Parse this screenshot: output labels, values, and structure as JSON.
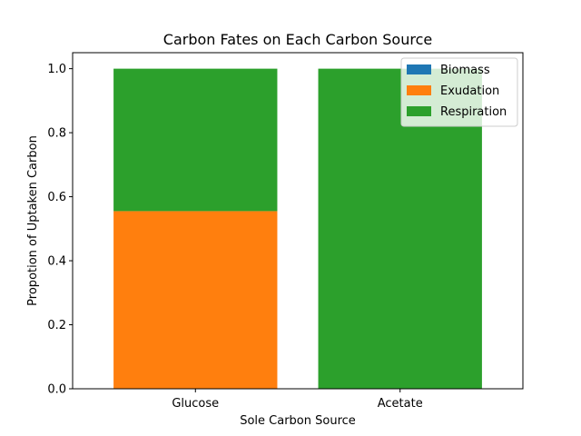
{
  "chart_data": {
    "type": "bar",
    "stacked": true,
    "title": "Carbon Fates on Each Carbon Source",
    "xlabel": "Sole Carbon Source",
    "ylabel": "Propotion of Uptaken Carbon",
    "categories": [
      "Glucose",
      "Acetate"
    ],
    "series": [
      {
        "name": "Biomass",
        "color": "#1f77b4",
        "values": [
          0.0,
          0.0
        ]
      },
      {
        "name": "Exudation",
        "color": "#ff7f0e",
        "values": [
          0.555,
          0.0
        ]
      },
      {
        "name": "Respiration",
        "color": "#2ca02c",
        "values": [
          0.445,
          1.0
        ]
      }
    ],
    "ylim": [
      0,
      1.05
    ],
    "yticks": [
      0.0,
      0.2,
      0.4,
      0.6,
      0.8,
      1.0
    ],
    "ytick_labels": [
      "0.0",
      "0.2",
      "0.4",
      "0.6",
      "0.8",
      "1.0"
    ],
    "grid": false,
    "legend_position": "top-right"
  }
}
